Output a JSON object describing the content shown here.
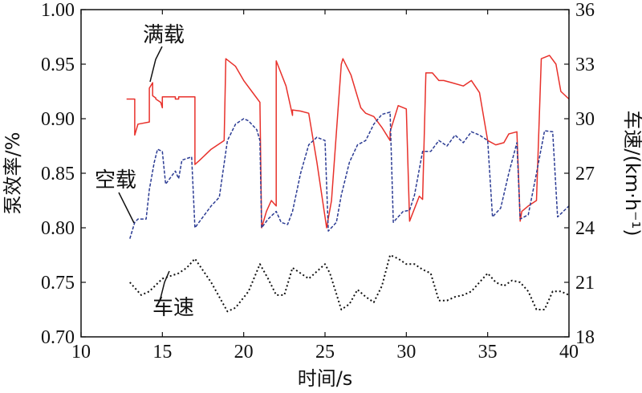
{
  "chart_data": {
    "type": "line",
    "title": "",
    "xlabel": "时间/s",
    "ylabel_left": "泵效率/%",
    "ylabel_right": "车速/(km·h⁻¹)",
    "xlim": [
      10,
      40
    ],
    "ylim_left": [
      0.7,
      1.0
    ],
    "ylim_right": [
      18,
      36
    ],
    "x_ticks": [
      "10",
      "15",
      "20",
      "25",
      "30",
      "35",
      "40"
    ],
    "y_left_ticks": [
      "0.70",
      "0.75",
      "0.80",
      "0.85",
      "0.90",
      "0.95",
      "1.00"
    ],
    "y_right_ticks": [
      "18",
      "21",
      "24",
      "27",
      "30",
      "33",
      "36"
    ],
    "grid": false,
    "colors": {
      "full_load": "#e8312b",
      "empty_load": "#2b3b93",
      "speed": "#111111"
    },
    "annotations": {
      "full_load": "满载",
      "empty_load": "空载",
      "speed": "车速"
    },
    "series": [
      {
        "name": "满载",
        "axis": "left",
        "x": [
          12.8,
          13.3,
          13.3,
          13.5,
          14.2,
          14.2,
          14.4,
          14.4,
          14.6,
          14.6,
          14.9,
          15.0,
          15.0,
          15.8,
          15.8,
          16.0,
          16.0,
          17.0,
          17.0,
          17.3,
          18.0,
          18.8,
          18.9,
          19.5,
          20.0,
          20.5,
          21.0,
          21.1,
          21.4,
          21.7,
          22.0,
          22.0,
          22.6,
          23.0,
          23.0,
          23.5,
          24.0,
          24.5,
          25.0,
          25.1,
          25.4,
          26.0,
          26.1,
          26.6,
          27.0,
          27.2,
          27.5,
          28.0,
          28.5,
          29.0,
          29.0,
          29.5,
          30.0,
          30.2,
          30.8,
          31.0,
          31.2,
          31.6,
          32.0,
          32.3,
          32.8,
          33.5,
          34.0,
          34.5,
          35.0,
          35.5,
          36.0,
          36.3,
          36.8,
          37.0,
          37.1,
          37.5,
          38.0,
          38.3,
          38.8,
          39.2,
          39.5,
          40.0
        ],
        "y": [
          0.918,
          0.918,
          0.885,
          0.895,
          0.897,
          0.928,
          0.933,
          0.921,
          0.919,
          0.918,
          0.915,
          0.91,
          0.92,
          0.92,
          0.918,
          0.918,
          0.92,
          0.92,
          0.858,
          0.862,
          0.872,
          0.88,
          0.955,
          0.948,
          0.935,
          0.925,
          0.915,
          0.8,
          0.815,
          0.825,
          0.82,
          0.953,
          0.93,
          0.903,
          0.908,
          0.907,
          0.905,
          0.86,
          0.81,
          0.8,
          0.825,
          0.95,
          0.955,
          0.94,
          0.92,
          0.91,
          0.905,
          0.902,
          0.892,
          0.88,
          0.888,
          0.912,
          0.909,
          0.806,
          0.829,
          0.826,
          0.942,
          0.942,
          0.935,
          0.935,
          0.933,
          0.93,
          0.935,
          0.924,
          0.88,
          0.876,
          0.878,
          0.886,
          0.888,
          0.806,
          0.815,
          0.82,
          0.825,
          0.955,
          0.958,
          0.95,
          0.925,
          0.918
        ]
      },
      {
        "name": "空载",
        "axis": "left",
        "x": [
          13.0,
          13.3,
          13.5,
          14.0,
          14.2,
          14.5,
          14.7,
          15.0,
          15.2,
          15.8,
          16.0,
          16.2,
          16.8,
          17.0,
          17.5,
          18.0,
          18.5,
          19.0,
          19.5,
          20.0,
          20.3,
          20.8,
          21.0,
          21.1,
          21.5,
          22.0,
          22.3,
          22.7,
          23.0,
          23.5,
          24.0,
          24.5,
          25.0,
          25.2,
          25.7,
          26.0,
          26.5,
          27.0,
          27.5,
          28.0,
          28.5,
          29.0,
          29.2,
          29.8,
          30.2,
          30.5,
          31.0,
          31.5,
          32.0,
          32.5,
          33.0,
          33.5,
          34.0,
          34.5,
          35.0,
          35.3,
          35.8,
          36.3,
          36.8,
          37.0,
          37.5,
          38.0,
          38.5,
          39.0,
          39.3,
          40.0
        ],
        "y": [
          0.79,
          0.805,
          0.808,
          0.808,
          0.835,
          0.86,
          0.872,
          0.87,
          0.84,
          0.852,
          0.845,
          0.862,
          0.865,
          0.8,
          0.81,
          0.82,
          0.828,
          0.88,
          0.895,
          0.9,
          0.898,
          0.89,
          0.88,
          0.8,
          0.808,
          0.815,
          0.805,
          0.803,
          0.815,
          0.85,
          0.876,
          0.883,
          0.88,
          0.797,
          0.805,
          0.83,
          0.86,
          0.876,
          0.88,
          0.895,
          0.904,
          0.906,
          0.805,
          0.815,
          0.816,
          0.83,
          0.87,
          0.87,
          0.88,
          0.875,
          0.885,
          0.878,
          0.888,
          0.885,
          0.88,
          0.81,
          0.818,
          0.85,
          0.878,
          0.808,
          0.812,
          0.85,
          0.889,
          0.888,
          0.81,
          0.82
        ]
      },
      {
        "name": "车速",
        "axis": "right",
        "x": [
          13.0,
          13.7,
          14.2,
          15.0,
          16.0,
          16.5,
          17.0,
          18.0,
          19.0,
          19.5,
          20.3,
          21.0,
          21.5,
          22.0,
          22.5,
          23.0,
          23.5,
          24.0,
          24.5,
          25.0,
          25.3,
          26.0,
          26.5,
          27.0,
          27.5,
          28.0,
          28.5,
          29.0,
          29.5,
          30.0,
          30.5,
          31.0,
          31.5,
          32.0,
          32.5,
          33.0,
          33.5,
          34.0,
          34.5,
          35.0,
          35.5,
          36.0,
          36.5,
          37.0,
          37.5,
          38.0,
          38.5,
          39.0,
          39.5,
          40.0
        ],
        "y": [
          21.0,
          20.3,
          20.5,
          21.2,
          21.5,
          21.8,
          22.3,
          21.0,
          19.4,
          19.6,
          20.5,
          22.0,
          21.2,
          20.3,
          20.3,
          21.8,
          21.5,
          21.2,
          21.6,
          22.0,
          21.5,
          19.5,
          19.8,
          20.6,
          20.2,
          19.9,
          20.8,
          22.5,
          22.3,
          22.0,
          22.0,
          21.7,
          21.5,
          20.0,
          20.0,
          20.2,
          20.3,
          20.5,
          21.0,
          21.5,
          21.0,
          20.8,
          21.1,
          21.0,
          20.5,
          19.5,
          19.5,
          20.5,
          20.5,
          20.3
        ]
      }
    ]
  }
}
